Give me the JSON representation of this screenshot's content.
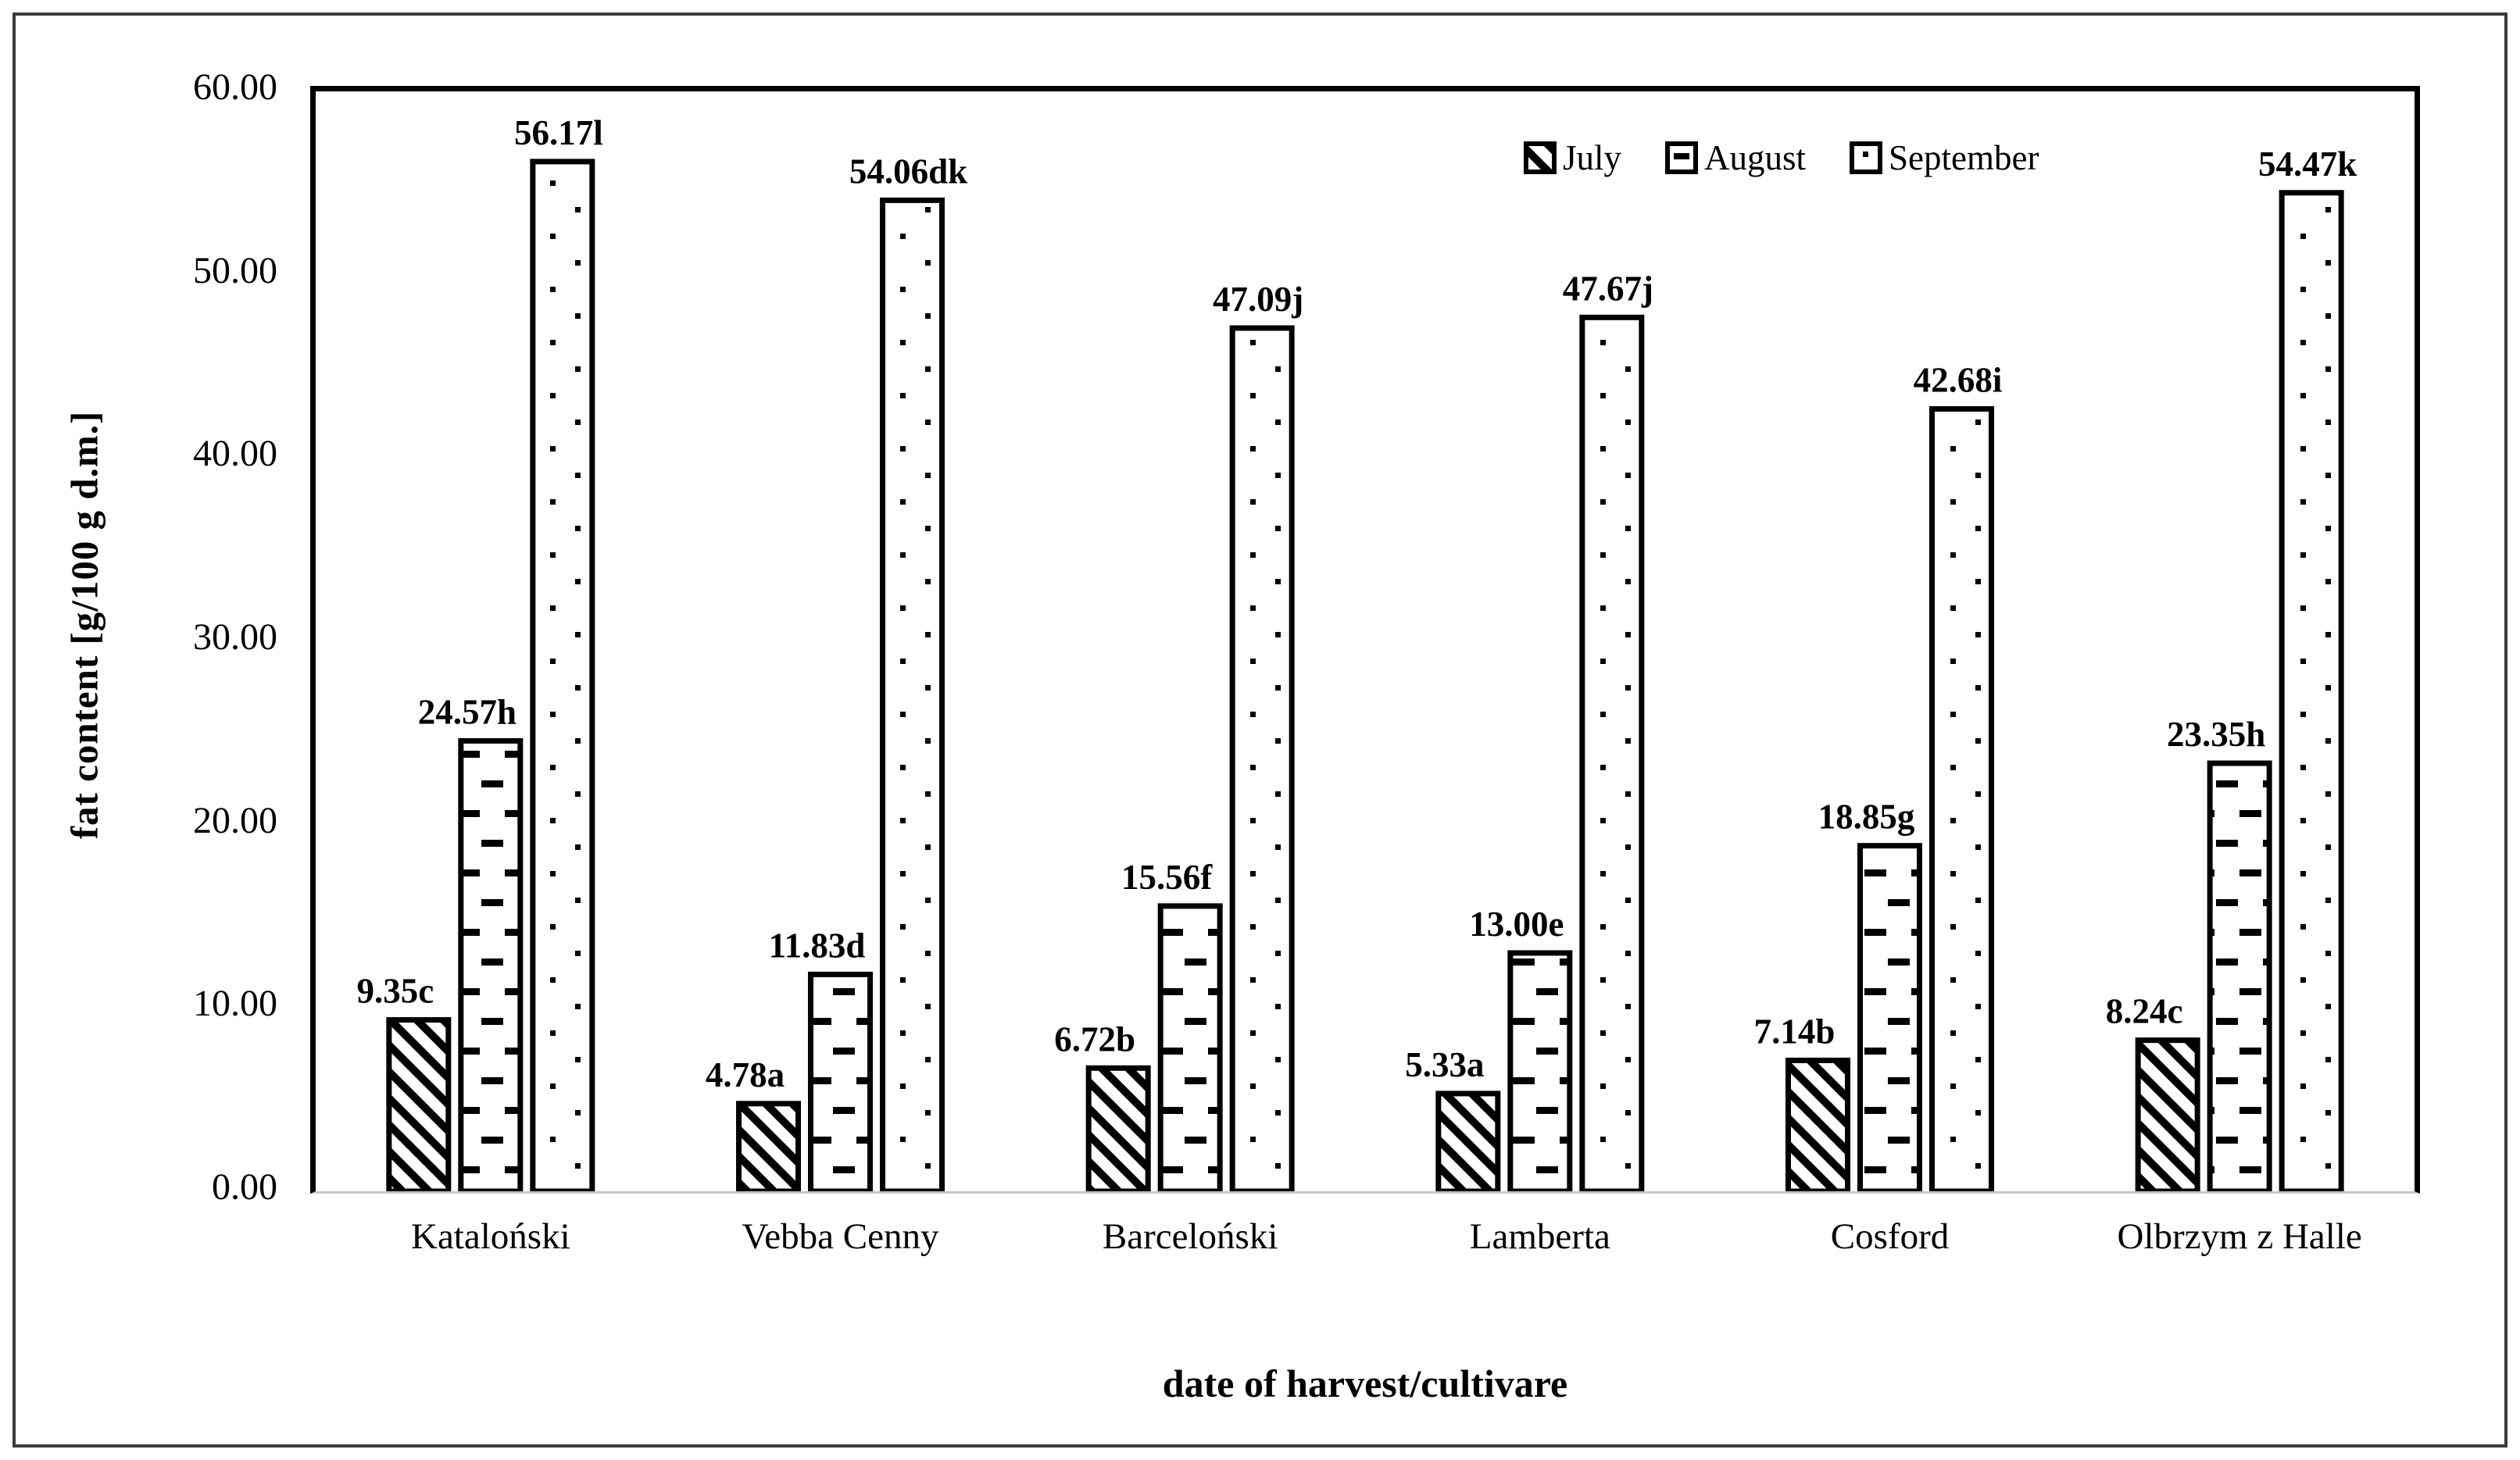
{
  "figure": {
    "background": "#ffffff",
    "outer_border_color": "#3b3b3b",
    "axis_color": "#000000",
    "baseline_color": "#c6c6c6"
  },
  "chart_data": {
    "type": "bar",
    "title": "",
    "xlabel": "date of harvest/cultivare",
    "ylabel": "fat content [g/100 g d.m.]",
    "ylim": [
      0,
      60
    ],
    "ytick_labels": [
      "0.00",
      "10.00",
      "20.00",
      "30.00",
      "40.00",
      "50.00",
      "60.00"
    ],
    "grid": false,
    "legend_position": "top-right-inside",
    "bar_outline_color": "#000000",
    "bar_fill_color": "#ffffff",
    "categories": [
      "Kataloński",
      "Vebba Cenny",
      "Barceloński",
      "Lamberta",
      "Cosford",
      "Olbrzym z Halle"
    ],
    "series": [
      {
        "name": "July",
        "pattern": "diagonal-hatch",
        "values": [
          9.35,
          4.78,
          6.72,
          5.33,
          7.14,
          8.24
        ],
        "labels": [
          "9.35c",
          "4.78a",
          "6.72b",
          "5.33a",
          "7.14b",
          "8.24c"
        ]
      },
      {
        "name": "August",
        "pattern": "horizontal-dashes",
        "values": [
          24.57,
          11.83,
          15.56,
          13.0,
          18.85,
          23.35
        ],
        "labels": [
          "24.57h",
          "11.83d",
          "15.56f",
          "13.00e",
          "18.85g",
          "23.35h"
        ]
      },
      {
        "name": "September",
        "pattern": "dots",
        "values": [
          56.17,
          54.06,
          47.09,
          47.67,
          42.68,
          54.47
        ],
        "labels": [
          "56.17l",
          "54.06dk",
          "47.09j",
          "47.67j",
          "42.68i",
          "54.47k"
        ]
      }
    ]
  }
}
